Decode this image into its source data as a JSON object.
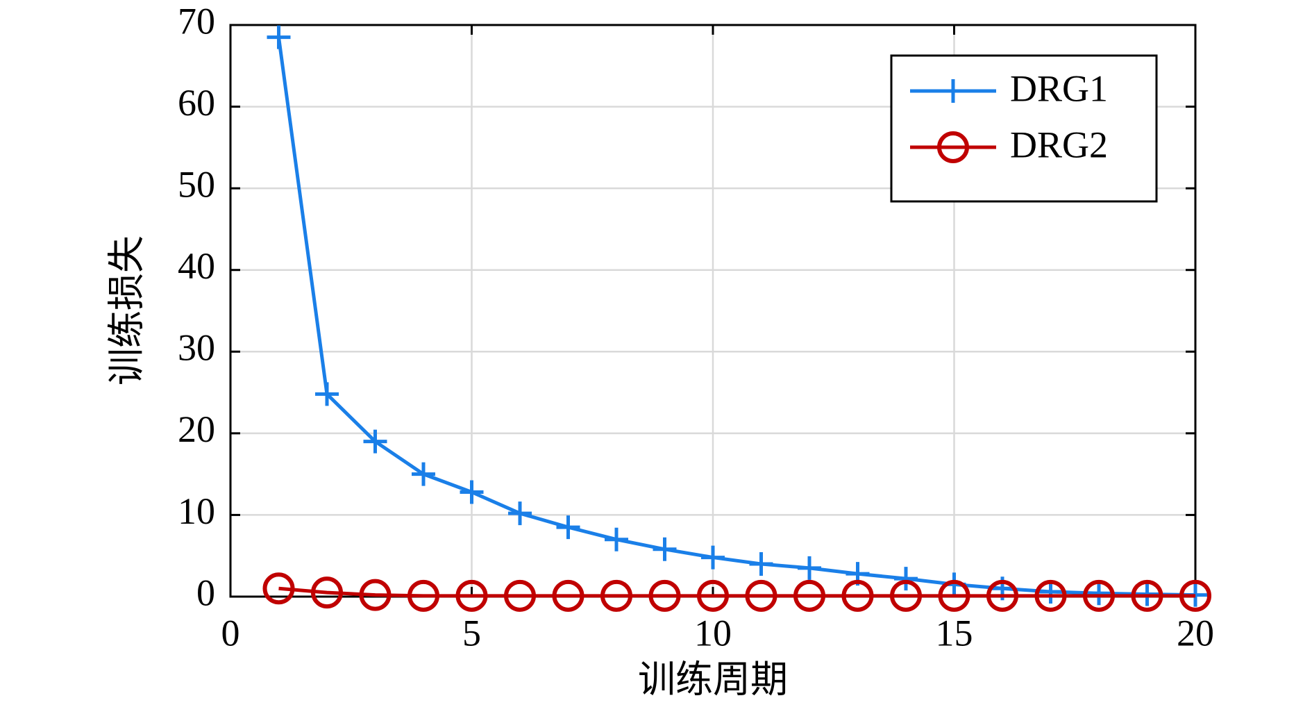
{
  "chart_data": {
    "type": "line",
    "xlabel": "训练周期",
    "ylabel": "训练损失",
    "x": [
      1,
      2,
      3,
      4,
      5,
      6,
      7,
      8,
      9,
      10,
      11,
      12,
      13,
      14,
      15,
      16,
      17,
      18,
      19,
      20
    ],
    "series": [
      {
        "name": "DRG1",
        "color": "#1a7fe8",
        "marker": "plus",
        "values": [
          68.5,
          24.8,
          19,
          15,
          12.8,
          10.2,
          8.5,
          7,
          5.8,
          4.8,
          4,
          3.5,
          2.8,
          2.2,
          1.5,
          1.0,
          0.6,
          0.4,
          0.3,
          0.2
        ]
      },
      {
        "name": "DRG2",
        "color": "#c00000",
        "marker": "circle",
        "values": [
          1.0,
          0.5,
          0.2,
          0.1,
          0.1,
          0.1,
          0.1,
          0.1,
          0.1,
          0.1,
          0.1,
          0.1,
          0.1,
          0.1,
          0.1,
          0.1,
          0.1,
          0.1,
          0.1,
          0.1
        ]
      }
    ],
    "xlim": [
      0,
      20
    ],
    "xticks": [
      0,
      5,
      10,
      15,
      20
    ],
    "ylim": [
      0,
      70
    ],
    "yticks": [
      0,
      10,
      20,
      30,
      40,
      50,
      60,
      70
    ],
    "grid": true,
    "legend": "upper-right"
  }
}
